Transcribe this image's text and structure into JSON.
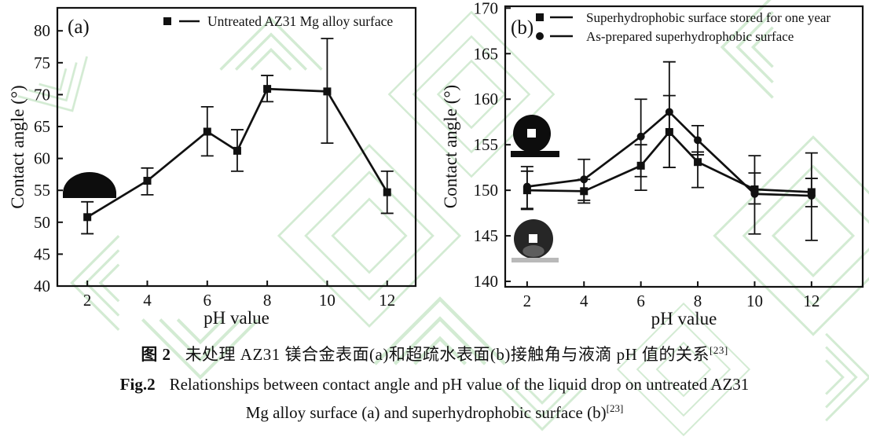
{
  "colors": {
    "line": "#111111",
    "text": "#111111",
    "watermark": "#cfe9cf",
    "background": "#ffffff",
    "droplet_dark": "#0d0d0d",
    "droplet_gray_base": "#b9b9b9"
  },
  "figure": {
    "caption_cn": {
      "label": "图 2",
      "text": "未处理 AZ31 镁合金表面(a)和超疏水表面(b)接触角与液滴 pH 值的关系",
      "ref": "[23]"
    },
    "caption_en": {
      "label": "Fig.2",
      "line1": "Relationships between contact angle and pH value of the liquid drop on untreated AZ31",
      "line2": "Mg alloy surface (a) and superhydrophobic surface (b)",
      "ref": "[23]"
    }
  },
  "chart_data": [
    {
      "id": "a",
      "type": "line",
      "panel_label": "(a)",
      "xlabel": "pH value",
      "ylabel": "Contact angle (°)",
      "xlim": [
        1.0,
        12.95
      ],
      "ylim": [
        40,
        83.6
      ],
      "x_ticks": [
        2,
        4,
        6,
        8,
        10,
        12
      ],
      "y_ticks": [
        40,
        45,
        50,
        55,
        60,
        65,
        70,
        75,
        80
      ],
      "grid": false,
      "legend_position": "top-center-inside",
      "series": [
        {
          "name": "Untreated AZ31 Mg alloy surface",
          "marker": "square",
          "x": [
            2,
            4,
            6,
            7,
            8,
            10,
            12
          ],
          "y": [
            50.8,
            56.5,
            64.2,
            61.2,
            70.9,
            70.5,
            54.7
          ],
          "err_plus": [
            2.4,
            2.0,
            3.9,
            3.3,
            2.1,
            8.3,
            3.3
          ],
          "err_minus": [
            2.6,
            2.2,
            3.8,
            3.2,
            2.0,
            8.1,
            3.3
          ]
        }
      ],
      "insets": [
        {
          "name": "sessile-drop-photo",
          "description": "side-view photo of flattened water drop on untreated AZ31 surface"
        }
      ]
    },
    {
      "id": "b",
      "type": "line",
      "panel_label": "(b)",
      "xlabel": "pH value",
      "ylabel": "Contact angle (°)",
      "xlim": [
        1.23,
        13.8
      ],
      "ylim": [
        139.4,
        170.2
      ],
      "x_ticks": [
        2,
        4,
        6,
        8,
        10,
        12
      ],
      "y_ticks": [
        140,
        145,
        150,
        155,
        160,
        165,
        170
      ],
      "grid": false,
      "legend_position": "top-left-inside",
      "series": [
        {
          "name": "Superhydrophobic surface stored for one year",
          "marker": "square",
          "x": [
            2,
            4,
            6,
            7,
            8,
            10,
            12
          ],
          "y": [
            150.0,
            149.9,
            152.7,
            156.4,
            153.1,
            150.1,
            149.8
          ],
          "err_plus": [
            2.1,
            1.3,
            2.3,
            4.0,
            1.1,
            3.7,
            4.3
          ],
          "err_minus": [
            2.1,
            1.3,
            2.7,
            3.9,
            2.8,
            4.9,
            1.6
          ]
        },
        {
          "name": "As-prepared superhydrophobic surface",
          "marker": "circle",
          "x": [
            2,
            4,
            6,
            7,
            8,
            10,
            12
          ],
          "y": [
            150.4,
            151.2,
            155.9,
            158.6,
            155.5,
            149.6,
            149.4
          ],
          "err_plus": [
            2.2,
            2.2,
            4.1,
            5.5,
            1.6,
            2.3,
            1.9
          ],
          "err_minus": [
            2.4,
            2.3,
            4.4,
            6.1,
            1.6,
            1.1,
            4.9
          ]
        }
      ],
      "insets": [
        {
          "name": "superhydrophobic-drop-photo",
          "description": "near-spherical drop on superhydrophobic surface"
        },
        {
          "name": "as-prepared-drop-photo",
          "description": "near-spherical drop photo with gray base"
        }
      ]
    }
  ]
}
